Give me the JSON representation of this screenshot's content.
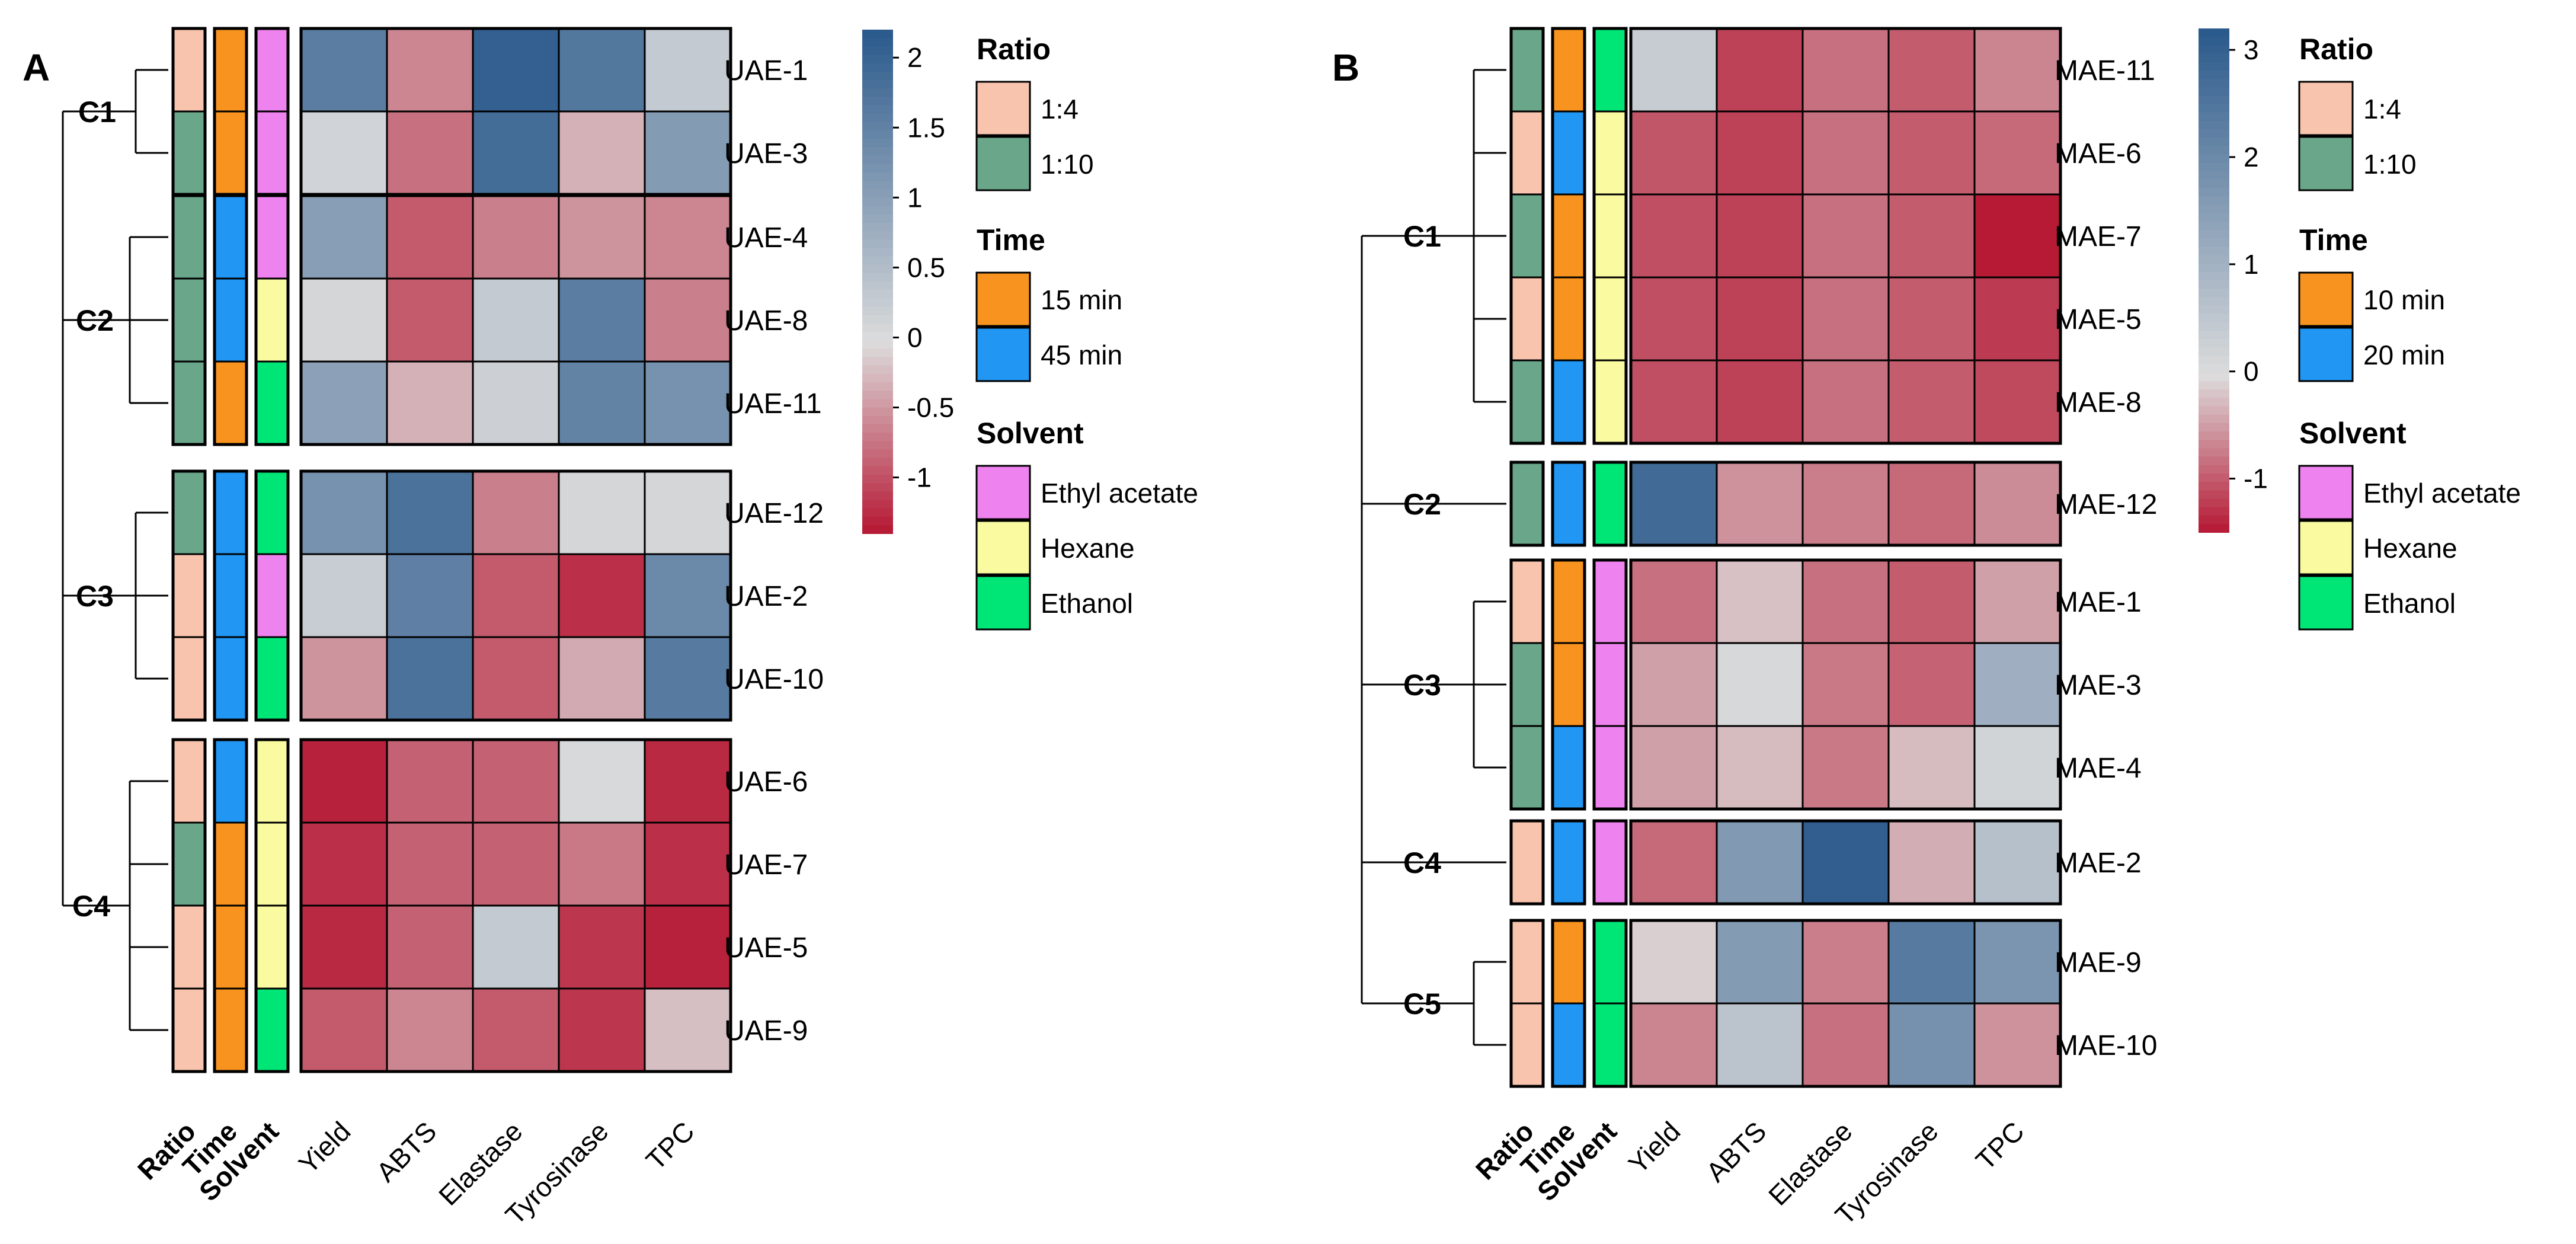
{
  "chart_data": [
    {
      "type": "heatmap",
      "panel_label": "A",
      "rows": [
        "UAE-1",
        "UAE-3",
        "UAE-4",
        "UAE-8",
        "UAE-11",
        "UAE-12",
        "UAE-2",
        "UAE-10",
        "UAE-6",
        "UAE-7",
        "UAE-5",
        "UAE-9"
      ],
      "columns": [
        "Yield",
        "ABTS",
        "Elastase",
        "Tyrosinase",
        "TPC"
      ],
      "annotation_titles": [
        "Ratio",
        "Time",
        "Solvent"
      ],
      "clusters": [
        {
          "label": "C1",
          "rows": [
            "UAE-1",
            "UAE-3"
          ]
        },
        {
          "label": "C2",
          "rows": [
            "UAE-4",
            "UAE-8",
            "UAE-11"
          ]
        },
        {
          "label": "C3",
          "rows": [
            "UAE-12",
            "UAE-2",
            "UAE-10"
          ]
        },
        {
          "label": "C4",
          "rows": [
            "UAE-6",
            "UAE-7",
            "UAE-5",
            "UAE-9"
          ]
        }
      ],
      "annotations": {
        "Ratio": [
          "1:4",
          "1:10",
          "1:10",
          "1:10",
          "1:10",
          "1:10",
          "1:4",
          "1:4",
          "1:4",
          "1:10",
          "1:4",
          "1:4"
        ],
        "Time": [
          "15 min",
          "15 min",
          "45 min",
          "45 min",
          "15 min",
          "45 min",
          "45 min",
          "45 min",
          "45 min",
          "15 min",
          "15 min",
          "15 min"
        ],
        "Solvent": [
          "Ethyl acetate",
          "Ethyl acetate",
          "Ethyl acetate",
          "Hexane",
          "Ethanol",
          "Ethanol",
          "Ethyl acetate",
          "Ethanol",
          "Hexane",
          "Hexane",
          "Hexane",
          "Ethanol"
        ]
      },
      "values": [
        [
          1.6,
          -0.6,
          2.1,
          1.7,
          0.3
        ],
        [
          0.15,
          -0.75,
          1.9,
          -0.3,
          1.1
        ],
        [
          1.05,
          -0.9,
          -0.65,
          -0.5,
          -0.6
        ],
        [
          0.1,
          -0.9,
          0.3,
          1.6,
          -0.65
        ],
        [
          1.0,
          -0.3,
          0.2,
          1.5,
          1.25
        ],
        [
          1.25,
          1.8,
          -0.65,
          0.1,
          0.1
        ],
        [
          0.25,
          1.55,
          -0.9,
          -1.2,
          1.4
        ],
        [
          -0.5,
          1.8,
          -0.9,
          -0.35,
          1.65
        ],
        [
          -1.3,
          -0.85,
          -0.85,
          0.05,
          -1.25
        ],
        [
          -1.2,
          -0.85,
          -0.85,
          -0.7,
          -1.2
        ],
        [
          -1.25,
          -0.85,
          0.3,
          -1.15,
          -1.3
        ],
        [
          -0.9,
          -0.6,
          -0.9,
          -1.15,
          -0.2
        ]
      ],
      "color_scale": {
        "min": -1.4,
        "max": 2.2,
        "low": "#b5132f",
        "mid": "#dcdcdc",
        "high": "#2b5a8c"
      },
      "colorbar_ticks": [
        "2",
        "1.5",
        "1",
        "0.5",
        "0",
        "-0.5",
        "-1"
      ],
      "colorbar_tick_values": [
        2,
        1.5,
        1,
        0.5,
        0,
        -0.5,
        -1
      ]
    },
    {
      "type": "heatmap",
      "panel_label": "B",
      "rows": [
        "MAE-11",
        "MAE-6",
        "MAE-7",
        "MAE-5",
        "MAE-8",
        "MAE-12",
        "MAE-1",
        "MAE-3",
        "MAE-4",
        "MAE-2",
        "MAE-9",
        "MAE-10"
      ],
      "columns": [
        "Yield",
        "ABTS",
        "Elastase",
        "Tyrosinase",
        "TPC"
      ],
      "annotation_titles": [
        "Ratio",
        "Time",
        "Solvent"
      ],
      "clusters": [
        {
          "label": "C1",
          "rows": [
            "MAE-11",
            "MAE-6",
            "MAE-7",
            "MAE-5",
            "MAE-8"
          ]
        },
        {
          "label": "C2",
          "rows": [
            "MAE-12"
          ]
        },
        {
          "label": "C3",
          "rows": [
            "MAE-1",
            "MAE-3",
            "MAE-4"
          ]
        },
        {
          "label": "C4",
          "rows": [
            "MAE-2"
          ]
        },
        {
          "label": "C5",
          "rows": [
            "MAE-9",
            "MAE-10"
          ]
        }
      ],
      "annotations": {
        "Ratio": [
          "1:10",
          "1:4",
          "1:10",
          "1:4",
          "1:10",
          "1:10",
          "1:4",
          "1:10",
          "1:10",
          "1:4",
          "1:4",
          "1:4"
        ],
        "Time": [
          "10 min",
          "20 min",
          "10 min",
          "10 min",
          "20 min",
          "20 min",
          "10 min",
          "10 min",
          "20 min",
          "20 min",
          "10 min",
          "20 min"
        ],
        "Solvent": [
          "Ethanol",
          "Hexane",
          "Hexane",
          "Hexane",
          "Hexane",
          "Ethanol",
          "Ethyl acetate",
          "Ethyl acetate",
          "Ethyl acetate",
          "Ethyl acetate",
          "Ethanol",
          "Ethanol"
        ]
      },
      "values": [
        [
          0.4,
          -1.15,
          -0.8,
          -0.95,
          -0.65
        ],
        [
          -1.0,
          -1.15,
          -0.8,
          -0.95,
          -0.85
        ],
        [
          -1.05,
          -1.15,
          -0.8,
          -0.95,
          -1.45
        ],
        [
          -1.05,
          -1.15,
          -0.8,
          -0.95,
          -1.2
        ],
        [
          -1.05,
          -1.15,
          -0.8,
          -0.95,
          -1.1
        ],
        [
          2.8,
          -0.55,
          -0.7,
          -0.85,
          -0.6
        ],
        [
          -0.8,
          -0.2,
          -0.8,
          -0.95,
          -0.45
        ],
        [
          -0.45,
          0.1,
          -0.75,
          -0.9,
          1.1
        ],
        [
          -0.45,
          -0.25,
          -0.75,
          -0.25,
          0.2
        ],
        [
          -0.85,
          1.65,
          3.1,
          -0.35,
          0.7
        ],
        [
          -0.1,
          1.6,
          -0.7,
          2.4,
          1.75
        ],
        [
          -0.65,
          0.6,
          -0.8,
          1.85,
          -0.55
        ]
      ],
      "color_scale": {
        "min": -1.5,
        "max": 3.2,
        "low": "#b5132f",
        "mid": "#dcdcdc",
        "high": "#2b5a8c"
      },
      "colorbar_ticks": [
        "3",
        "2",
        "1",
        "0",
        "-1"
      ],
      "colorbar_tick_values": [
        3,
        2,
        1,
        0,
        -1
      ]
    }
  ],
  "legends": {
    "A": [
      {
        "title": "Ratio",
        "items": [
          {
            "label": "1:4",
            "color": "#f8c4ae"
          },
          {
            "label": "1:10",
            "color": "#6aa68a"
          }
        ]
      },
      {
        "title": "Time",
        "items": [
          {
            "label": "15 min",
            "color": "#f7931e"
          },
          {
            "label": "45 min",
            "color": "#2196f3"
          }
        ]
      },
      {
        "title": "Solvent",
        "items": [
          {
            "label": "Ethyl acetate",
            "color": "#ee82ee"
          },
          {
            "label": "Hexane",
            "color": "#fafaa0"
          },
          {
            "label": "Ethanol",
            "color": "#00e676"
          }
        ]
      }
    ],
    "B": [
      {
        "title": "Ratio",
        "items": [
          {
            "label": "1:4",
            "color": "#f8c4ae"
          },
          {
            "label": "1:10",
            "color": "#6aa68a"
          }
        ]
      },
      {
        "title": "Time",
        "items": [
          {
            "label": "10 min",
            "color": "#f7931e"
          },
          {
            "label": "20 min",
            "color": "#2196f3"
          }
        ]
      },
      {
        "title": "Solvent",
        "items": [
          {
            "label": "Ethyl acetate",
            "color": "#ee82ee"
          },
          {
            "label": "Hexane",
            "color": "#fafaa0"
          },
          {
            "label": "Ethanol",
            "color": "#00e676"
          }
        ]
      }
    ]
  }
}
